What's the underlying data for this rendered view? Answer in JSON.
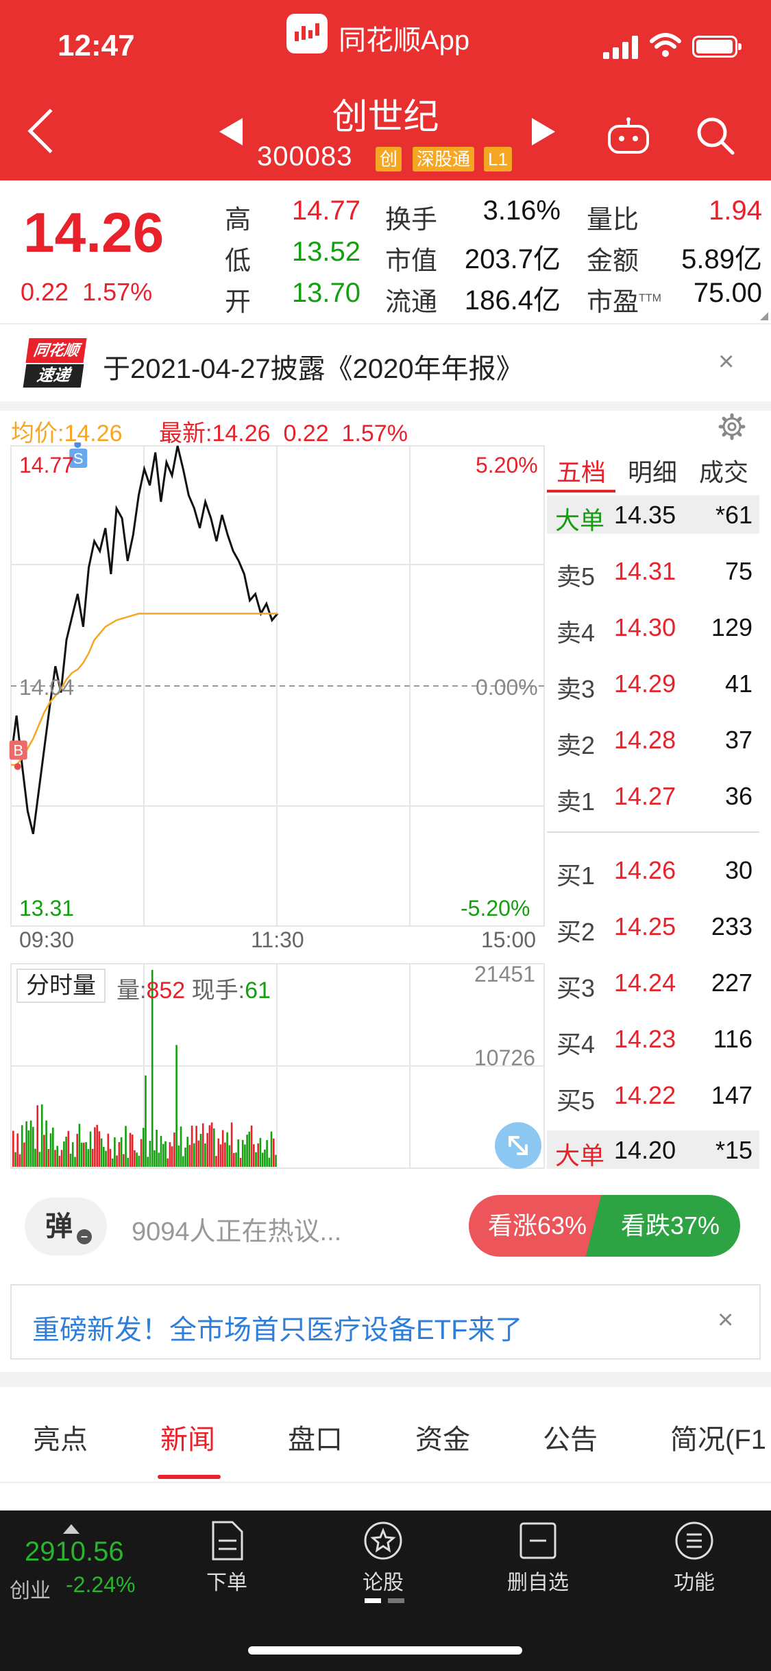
{
  "status": {
    "time": "12:47",
    "app_name": "同花顺App"
  },
  "stock": {
    "name": "创世纪",
    "code": "300083",
    "tags": [
      "创",
      "深股通",
      "L1"
    ]
  },
  "quote": {
    "price": "14.26",
    "change": "0.22",
    "change_pct": "1.57%",
    "fields": {
      "high": {
        "label": "高",
        "value": "14.77"
      },
      "low": {
        "label": "低",
        "value": "13.52"
      },
      "open": {
        "label": "开",
        "value": "13.70"
      },
      "turnover": {
        "label": "换手",
        "value": "3.16%"
      },
      "market_cap": {
        "label": "市值",
        "value": "203.7亿"
      },
      "float_cap": {
        "label": "流通",
        "value": "186.4亿"
      },
      "vol_ratio": {
        "label": "量比",
        "value": "1.94"
      },
      "amount": {
        "label": "金额",
        "value": "5.89亿"
      },
      "pe": {
        "label": "市盈",
        "sup": "TTM",
        "value": "75.00"
      }
    }
  },
  "news_banner": {
    "logo_top": "同花顺",
    "logo_bottom": "速递",
    "text": "于2021-04-27披露《2020年年报》"
  },
  "chart_header": {
    "avg_label": "均价:14.26",
    "latest_label": "最新:14.26",
    "latest_change": "0.22",
    "latest_pct": "1.57%"
  },
  "chart_data": {
    "type": "line",
    "y_max_label": "14.77",
    "y_mid_label": "14.04",
    "y_min_label": "13.31",
    "pct_max_label": "5.20%",
    "pct_mid_label": "0.00%",
    "pct_min_label": "-5.20%",
    "ylim": [
      13.31,
      14.77
    ],
    "x_labels": [
      "09:30",
      "11:30",
      "15:00"
    ],
    "total_minutes": 240,
    "series": [
      {
        "values": [
          13.82,
          13.95,
          13.8,
          13.66,
          13.59,
          13.72,
          13.85,
          13.98,
          14.1,
          14.02,
          14.18,
          14.25,
          14.32,
          14.22,
          14.4,
          14.48,
          14.45,
          14.52,
          14.38,
          14.58,
          14.55,
          14.42,
          14.5,
          14.62,
          14.7,
          14.65,
          14.75,
          14.6,
          14.72,
          14.68,
          14.77,
          14.7,
          14.62,
          14.58,
          14.52,
          14.6,
          14.55,
          14.48,
          14.56,
          14.5,
          14.45,
          14.42,
          14.38,
          14.3,
          14.32,
          14.26,
          14.29,
          14.24,
          14.26
        ]
      },
      {
        "values": [
          13.8,
          13.8,
          13.82,
          13.85,
          13.88,
          13.92,
          13.96,
          13.99,
          14.01,
          14.03,
          14.06,
          14.08,
          14.09,
          14.11,
          14.14,
          14.18,
          14.2,
          14.22,
          14.23,
          14.24,
          14.245,
          14.25,
          14.255,
          14.26,
          14.26,
          14.26,
          14.26,
          14.26,
          14.26,
          14.26,
          14.26,
          14.26,
          14.26,
          14.26,
          14.26,
          14.26,
          14.26,
          14.26,
          14.26,
          14.26,
          14.26,
          14.26,
          14.26,
          14.26,
          14.26,
          14.26,
          14.26,
          14.26,
          14.26
        ]
      }
    ],
    "markers": [
      {
        "label": "B",
        "minute": 3,
        "price": 13.82
      },
      {
        "label": "S",
        "minute": 30,
        "price": 14.77
      }
    ]
  },
  "order_book": {
    "tabs": [
      "五档",
      "明细",
      "成交"
    ],
    "big_sell": {
      "label": "大单",
      "price": "14.35",
      "vol": "*61"
    },
    "asks": [
      {
        "label": "卖5",
        "price": "14.31",
        "vol": "75"
      },
      {
        "label": "卖4",
        "price": "14.30",
        "vol": "129"
      },
      {
        "label": "卖3",
        "price": "14.29",
        "vol": "41"
      },
      {
        "label": "卖2",
        "price": "14.28",
        "vol": "37"
      },
      {
        "label": "卖1",
        "price": "14.27",
        "vol": "36"
      }
    ],
    "bids": [
      {
        "label": "买1",
        "price": "14.26",
        "vol": "30"
      },
      {
        "label": "买2",
        "price": "14.25",
        "vol": "233"
      },
      {
        "label": "买3",
        "price": "14.24",
        "vol": "227"
      },
      {
        "label": "买4",
        "price": "14.23",
        "vol": "116"
      },
      {
        "label": "买5",
        "price": "14.22",
        "vol": "147"
      }
    ],
    "big_buy": {
      "label": "大单",
      "price": "14.20",
      "vol": "*15"
    }
  },
  "volume": {
    "title": "分时量",
    "vol_label": "量:",
    "vol_value": "852",
    "hand_label": "现手:",
    "hand_value": "61",
    "max_label": "21451",
    "mid_label": "10726",
    "max": 21451
  },
  "discussion": {
    "danmu": "弹",
    "text": "9094人正在热议...",
    "bull": "看涨63%",
    "bear": "看跌37%"
  },
  "promo": {
    "text": "重磅新发！全市场首只医疗设备ETF来了"
  },
  "tabs": [
    "亮点",
    "新闻",
    "盘口",
    "资金",
    "公告",
    "简况(F1"
  ],
  "bottom_nav": {
    "index_value": "2910.56",
    "index_name": "创业",
    "index_change": "-2.24%",
    "items": [
      "下单",
      "论股",
      "删自选",
      "功能"
    ]
  },
  "colors": {
    "up": "#e8212a",
    "down": "#13a00f",
    "header": "#e93030",
    "avg_line": "#f5a623"
  }
}
